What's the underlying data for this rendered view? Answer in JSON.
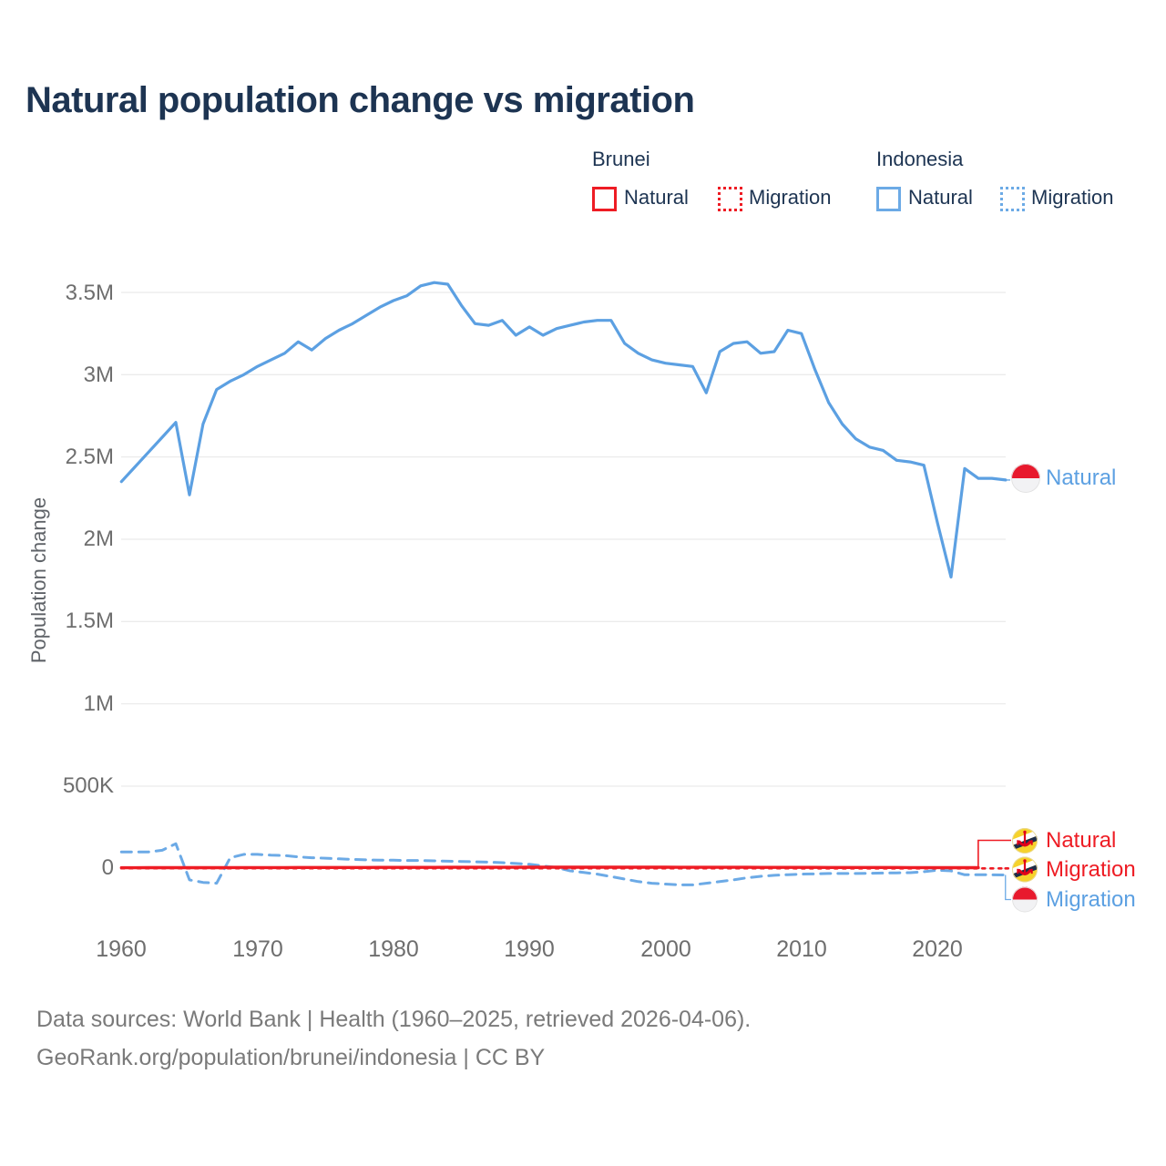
{
  "title": "Natural population change vs migration",
  "legend": {
    "groups": [
      {
        "country": "Brunei",
        "items": [
          {
            "label": "Natural",
            "style": "solid",
            "color": "#ee1c24"
          },
          {
            "label": "Migration",
            "style": "dotted",
            "color": "#ee1c24"
          }
        ]
      },
      {
        "country": "Indonesia",
        "items": [
          {
            "label": "Natural",
            "style": "solid",
            "color": "#6caae6"
          },
          {
            "label": "Migration",
            "style": "dotted",
            "color": "#6caae6"
          }
        ]
      }
    ]
  },
  "axes": {
    "y": {
      "title": "Population change",
      "ticks": [
        "3.5M",
        "3M",
        "2.5M",
        "2M",
        "1.5M",
        "1M",
        "500K",
        "0"
      ]
    },
    "x": {
      "ticks": [
        "1960",
        "1970",
        "1980",
        "1990",
        "2000",
        "2010",
        "2020"
      ]
    }
  },
  "line_labels": {
    "indonesia_natural": "Natural",
    "brunei_natural": "Natural",
    "brunei_migration": "Migration",
    "indonesia_migration": "Migration"
  },
  "footer": {
    "line1": "Data sources: World Bank | Health (1960–2025, retrieved 2026-04-06).",
    "line2": "GeoRank.org/population/brunei/indonesia | CC BY"
  },
  "chart_data": {
    "type": "line",
    "title": "Natural population change vs migration",
    "xlabel": "",
    "ylabel": "Population change",
    "x_tick_years": [
      1960,
      1970,
      1980,
      1990,
      2000,
      2010,
      2020
    ],
    "y_tick_labels": [
      "0",
      "500K",
      "1M",
      "1.5M",
      "2M",
      "2.5M",
      "3M",
      "3.5M"
    ],
    "y_gridlines_k": [
      0,
      500,
      1000,
      1500,
      2000,
      2500,
      3000,
      3500
    ],
    "ylim_k": [
      -150,
      3650
    ],
    "xlim": [
      1959.5,
      2025.5
    ],
    "grid": "horizontal",
    "legend_position": "top-right",
    "years": [
      1960,
      1961,
      1962,
      1963,
      1964,
      1965,
      1966,
      1967,
      1968,
      1969,
      1970,
      1971,
      1972,
      1973,
      1974,
      1975,
      1976,
      1977,
      1978,
      1979,
      1980,
      1981,
      1982,
      1983,
      1984,
      1985,
      1986,
      1987,
      1988,
      1989,
      1990,
      1991,
      1992,
      1993,
      1994,
      1995,
      1996,
      1997,
      1998,
      1999,
      2000,
      2001,
      2002,
      2003,
      2004,
      2005,
      2006,
      2007,
      2008,
      2009,
      2010,
      2011,
      2012,
      2013,
      2014,
      2015,
      2016,
      2017,
      2018,
      2019,
      2020,
      2021,
      2022,
      2023,
      2024,
      2025
    ],
    "series": [
      {
        "id": "indonesia-migration",
        "country": "Indonesia",
        "name": "Migration",
        "color": "#6caae6",
        "dash": "11 8",
        "width": 3,
        "values_k": [
          100,
          100,
          100,
          110,
          150,
          -70,
          -85,
          -90,
          65,
          85,
          85,
          80,
          78,
          70,
          65,
          62,
          58,
          55,
          52,
          50,
          50,
          48,
          48,
          46,
          44,
          42,
          40,
          38,
          35,
          30,
          25,
          15,
          5,
          -15,
          -25,
          -35,
          -50,
          -65,
          -80,
          -90,
          -95,
          -100,
          -100,
          -90,
          -80,
          -70,
          -57,
          -48,
          -42,
          -38,
          -35,
          -33,
          -31,
          -31,
          -31,
          -30,
          -28,
          -27,
          -26,
          -20,
          -11,
          -15,
          -39,
          -39,
          -39,
          -40
        ]
      },
      {
        "id": "brunei-migration",
        "country": "Brunei",
        "name": "Migration",
        "color": "#ee1c24",
        "dash": "3 6",
        "width": 2.6,
        "values_k": [
          0.3,
          0.3,
          0.3,
          0.3,
          0.3,
          0.3,
          0.3,
          0.3,
          0.3,
          0.3,
          0.3,
          0.3,
          0.3,
          0.3,
          0.3,
          0.3,
          0.3,
          0.3,
          0.3,
          0.3,
          0.4,
          0.4,
          0.4,
          0.4,
          0.4,
          0.4,
          0.4,
          0.4,
          0.4,
          0.4,
          0.4,
          0.4,
          0.4,
          0.4,
          0.4,
          0.4,
          0.4,
          0.4,
          0.4,
          0.4,
          0.3,
          0.3,
          0.3,
          0.3,
          0.3,
          0.3,
          0.3,
          0.3,
          0.3,
          0.3,
          0.2,
          0.2,
          0.2,
          0.2,
          0.2,
          0.2,
          0.2,
          0.2,
          0.2,
          0.2,
          0.1,
          0.1,
          0.1,
          0.1,
          0.1,
          0.1
        ]
      },
      {
        "id": "brunei-natural",
        "country": "Brunei",
        "name": "Natural",
        "color": "#ee1c24",
        "dash": null,
        "width": 3.4,
        "values_k": [
          4.0,
          4.1,
          4.2,
          4.3,
          4.4,
          4.5,
          4.6,
          4.7,
          4.8,
          4.9,
          5.0,
          5.1,
          5.2,
          5.3,
          5.4,
          5.5,
          5.6,
          5.7,
          5.8,
          5.9,
          6.0,
          6.1,
          6.2,
          6.3,
          6.4,
          6.5,
          6.6,
          6.7,
          6.8,
          6.9,
          7.0,
          7.0,
          7.0,
          7.0,
          7.0,
          7.0,
          7.0,
          7.0,
          7.0,
          7.0,
          7.0,
          6.9,
          6.8,
          6.7,
          6.6,
          6.5,
          6.4,
          6.3,
          6.2,
          6.1,
          6.0,
          5.9,
          5.8,
          5.7,
          5.6,
          5.5,
          5.4,
          5.3,
          5.2,
          5.1,
          5.0,
          4.6,
          4.4,
          4.3,
          4.2,
          4.2
        ]
      },
      {
        "id": "indonesia-natural",
        "country": "Indonesia",
        "name": "Natural",
        "color": "#5ca0e2",
        "dash": null,
        "width": 3.2,
        "values_k": [
          2350,
          2440,
          2530,
          2620,
          2710,
          2270,
          2700,
          2910,
          2960,
          3000,
          3050,
          3090,
          3130,
          3200,
          3150,
          3220,
          3270,
          3310,
          3360,
          3410,
          3450,
          3480,
          3540,
          3560,
          3550,
          3420,
          3310,
          3300,
          3330,
          3240,
          3290,
          3240,
          3280,
          3300,
          3320,
          3330,
          3330,
          3190,
          3130,
          3090,
          3070,
          3060,
          3050,
          2890,
          3140,
          3190,
          3200,
          3130,
          3140,
          3270,
          3250,
          3030,
          2830,
          2700,
          2610,
          2560,
          2540,
          2480,
          2470,
          2450,
          2100,
          1770,
          2430,
          2370,
          2370,
          2360
        ]
      }
    ]
  }
}
